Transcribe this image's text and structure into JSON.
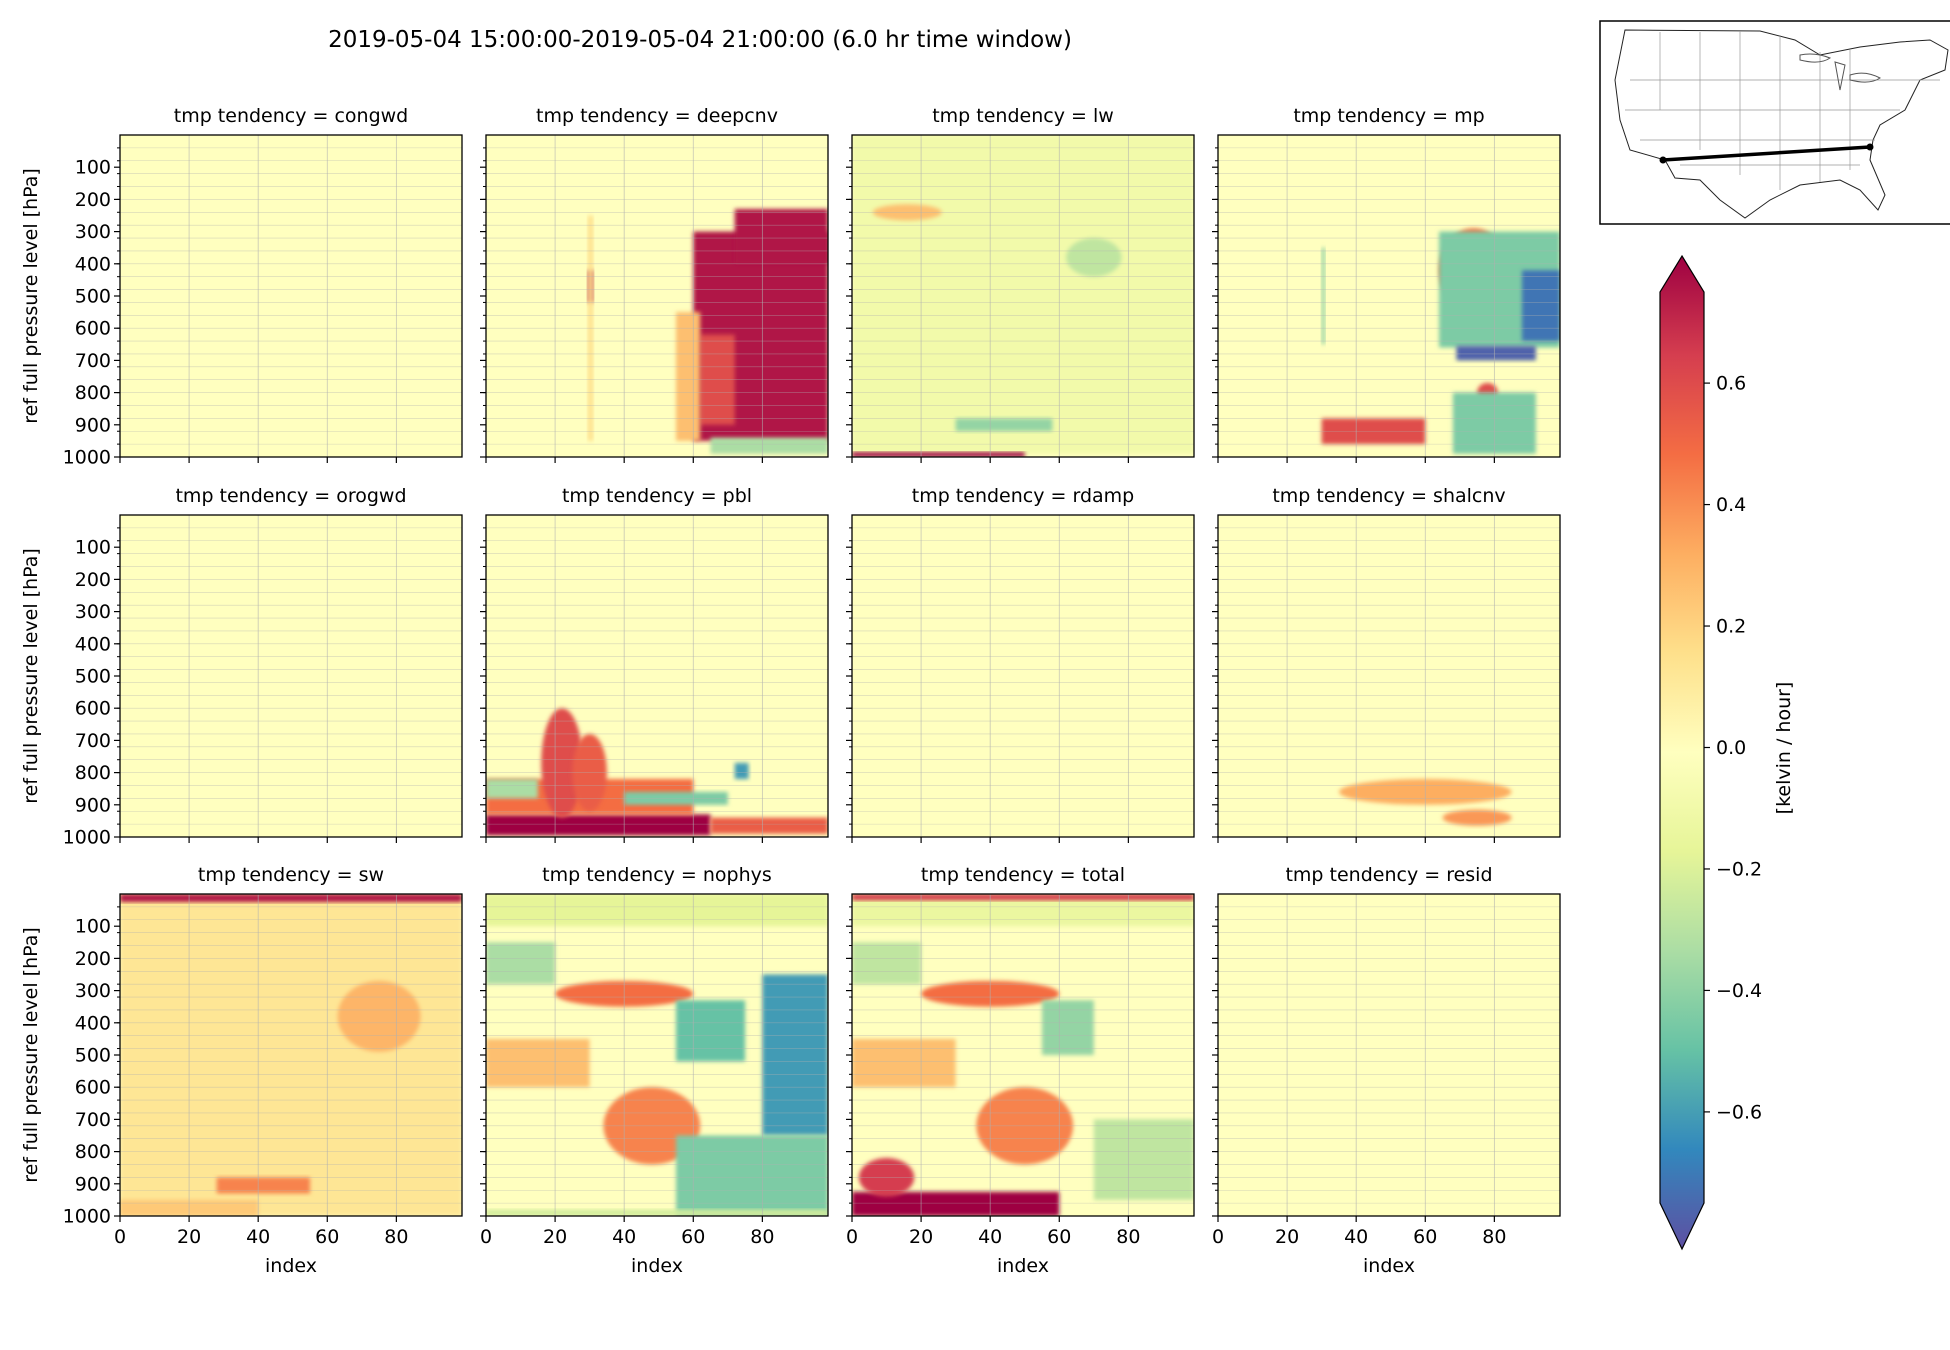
{
  "figure": {
    "suptitle": "2019-05-04 15:00:00-2019-05-04 21:00:00 (6.0 hr time window)"
  },
  "chart_data": {
    "type": "heatmap",
    "layout": "3 rows x 4 columns small multiples",
    "title": "2019-05-04 15:00:00-2019-05-04 21:00:00 (6.0 hr time window)",
    "xlabel": "index",
    "ylabel": "ref full pressure level [hPa]",
    "xlim": [
      0,
      99
    ],
    "ylim": [
      1000,
      0
    ],
    "x_ticks": [
      "0",
      "20",
      "40",
      "60",
      "80"
    ],
    "y_ticks": [
      "100",
      "200",
      "300",
      "400",
      "500",
      "600",
      "700",
      "800",
      "900",
      "1000"
    ],
    "grid": true,
    "colormap": "Spectral_r",
    "color_range": [
      -0.75,
      0.75
    ],
    "colorbar": {
      "label": "[kelvin / hour]",
      "ticks": [
        "0.6",
        "0.4",
        "0.2",
        "0.0",
        "−0.2",
        "−0.4",
        "−0.6"
      ],
      "tick_values": [
        0.6,
        0.4,
        0.2,
        0.0,
        -0.2,
        -0.4,
        -0.6
      ],
      "extend": "both"
    },
    "panels": [
      {
        "title": "tmp tendency = congwd",
        "summary": "near zero everywhere"
      },
      {
        "title": "tmp tendency = deepcnv",
        "summary": "strong warming (>0.6) index 60-99 at 300-950 hPa; thin warm column near index 30"
      },
      {
        "title": "tmp tendency = lw",
        "summary": "weak cooling (~-0.1) aloft; strong warming at surface index 0-50"
      },
      {
        "title": "tmp tendency = mp",
        "summary": "warming ~0.5 near index 72 at 350-550 hPa; cooling (<-0.6) index 70-99 at 400-700 hPa; mixed near surface index 30-60"
      },
      {
        "title": "tmp tendency = orogwd",
        "summary": "near zero everywhere"
      },
      {
        "title": "tmp tendency = pbl",
        "summary": "strong warming (>0.6) below 900 hPa index 0-65; mixed warm/cool 600-900 hPa"
      },
      {
        "title": "tmp tendency = rdamp",
        "summary": "near zero everywhere"
      },
      {
        "title": "tmp tendency = shalcnv",
        "summary": "weak warming ~0.3 index 30-90 at 820-950 hPa"
      },
      {
        "title": "tmp tendency = sw",
        "summary": "weak warming ~0.1-0.2 everywhere; ~0.3 near index 75 at 300-500 hPa; strong warming at top"
      },
      {
        "title": "tmp tendency = nophys",
        "summary": "banded pattern; warm band 250-400 hPa index 20-55; cooling index 55-99 at 350-1000 hPa"
      },
      {
        "title": "tmp tendency = total",
        "summary": "banded pattern; strong warming below 920 hPa index 0-60"
      },
      {
        "title": "tmp tendency = resid",
        "summary": "near zero everywhere"
      }
    ]
  },
  "inset_map": {
    "kind": "locator map",
    "content": "contiguous United States outline with state boundaries and a black transect line from the southwest border to the southeast"
  }
}
